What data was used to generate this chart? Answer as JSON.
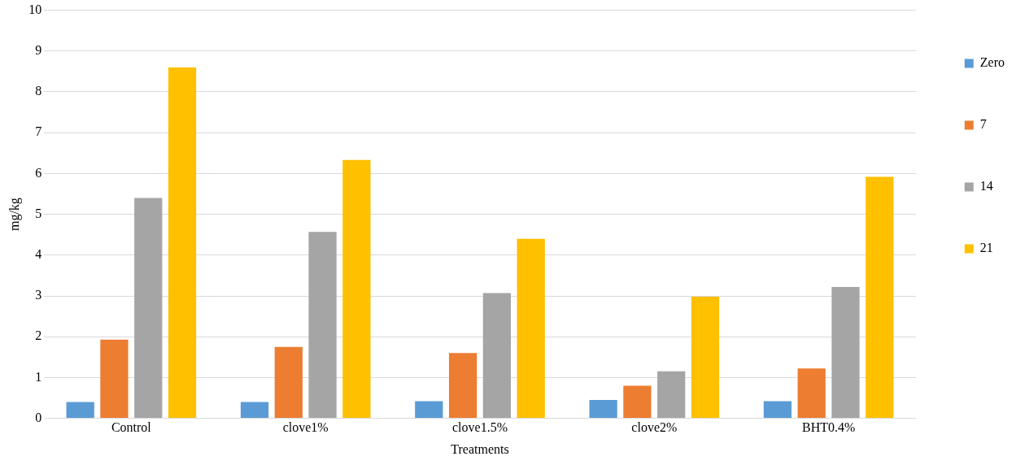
{
  "chart_data": {
    "type": "bar",
    "xlabel": "Treatments",
    "ylabel": "mg/kg",
    "categories": [
      "Control",
      "clove1%",
      "clove1.5%",
      "clove2%",
      "BHT0.4%"
    ],
    "series": [
      {
        "name": "Zero",
        "color": "#5b9bd5",
        "values": [
          0.4,
          0.4,
          0.42,
          0.45,
          0.42
        ]
      },
      {
        "name": "7",
        "color": "#ed7d31",
        "values": [
          1.93,
          1.75,
          1.6,
          0.8,
          1.22
        ]
      },
      {
        "name": "14",
        "color": "#a5a5a5",
        "values": [
          5.4,
          4.57,
          3.07,
          1.15,
          3.22
        ]
      },
      {
        "name": "21",
        "color": "#ffc000",
        "values": [
          8.6,
          6.33,
          4.4,
          2.98,
          5.92
        ]
      }
    ],
    "ylim": [
      0,
      10
    ],
    "yticks": [
      0,
      1,
      2,
      3,
      4,
      5,
      6,
      7,
      8,
      9,
      10
    ],
    "grid": "y",
    "legend": "right"
  }
}
